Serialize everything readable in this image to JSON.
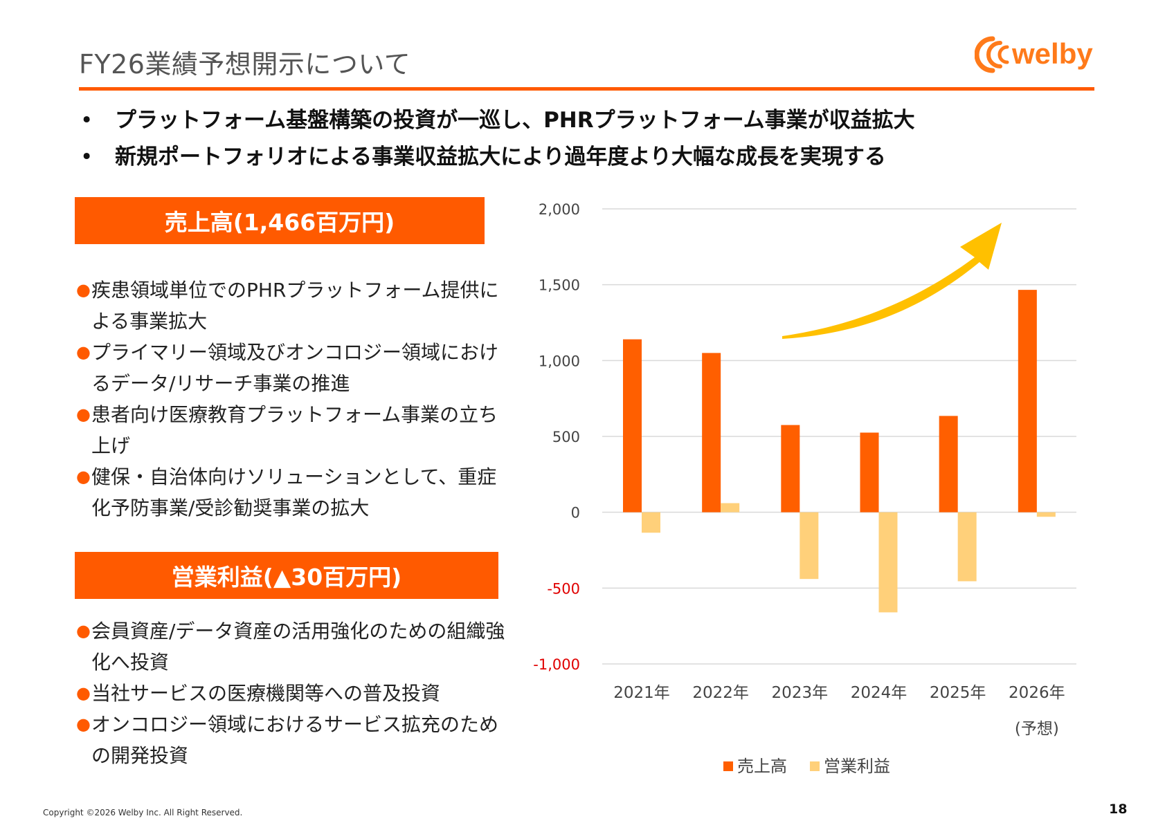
{
  "header": {
    "title": "FY26業績予想開示について",
    "logo_text": "welby"
  },
  "headlines": [
    {
      "bullet": "•",
      "text": "プラットフォーム基盤構築の投資が一巡し、PHRプラットフォーム事業が収益拡大"
    },
    {
      "bullet": "•",
      "text": "新規ポートフォリオによる事業収益拡大により過年度より大幅な成長を実現する"
    }
  ],
  "sales_section": {
    "title": "売上高(1,466百万円)",
    "items": [
      {
        "mark": "●",
        "text": "疾患領域単位でのPHRプラットフォーム提供による事業拡大"
      },
      {
        "mark": "●",
        "text": "プライマリー領域及びオンコロジー領域におけるデータ/リサーチ事業の推進"
      },
      {
        "mark": "●",
        "text": "患者向け医療教育プラットフォーム事業の立ち上げ"
      },
      {
        "mark": "●",
        "text": "健保・自治体向けソリューションとして、重症化予防事業/受診勧奨事業の拡大"
      }
    ]
  },
  "profit_section": {
    "title": "営業利益(▲30百万円)",
    "items": [
      {
        "mark": "●",
        "text": "会員資産/データ資産の活用強化のための組織強化へ投資"
      },
      {
        "mark": "●",
        "text": "当社サービスの医療機関等への普及投資"
      },
      {
        "mark": "●",
        "text": "オンコロジー領域におけるサービス拡充のための開発投資"
      }
    ]
  },
  "chart_data": {
    "type": "bar",
    "categories": [
      "2021年",
      "2022年",
      "2023年",
      "2024年",
      "2025年",
      "2026年"
    ],
    "category_sublabels": [
      "",
      "",
      "",
      "",
      "",
      "(予想)"
    ],
    "series": [
      {
        "name": "売上高",
        "color": "#ff5f00",
        "values": [
          1140,
          1050,
          575,
          525,
          635,
          1466
        ]
      },
      {
        "name": "営業利益",
        "color": "#ffd07a",
        "values": [
          -135,
          60,
          -440,
          -660,
          -455,
          -30
        ]
      }
    ],
    "ylim": [
      -1000,
      2000
    ],
    "yticks": [
      {
        "value": 2000,
        "label": "2,000"
      },
      {
        "value": 1500,
        "label": "1,500"
      },
      {
        "value": 1000,
        "label": "1,000"
      },
      {
        "value": 500,
        "label": "500"
      },
      {
        "value": 0,
        "label": "0"
      },
      {
        "value": -500,
        "label": "-500"
      },
      {
        "value": -1000,
        "label": "-1,000"
      }
    ],
    "negative_tick_color": "#e00000",
    "grid": true,
    "legend": "bottom",
    "trend_arrow": true
  },
  "footer": {
    "copyright": "Copyright ©2026 Welby Inc. All Right Reserved.",
    "page_number": "18"
  },
  "colors": {
    "accent": "#ff5a00",
    "logo": "#ff7a1a",
    "arrow": "#ffc000"
  }
}
